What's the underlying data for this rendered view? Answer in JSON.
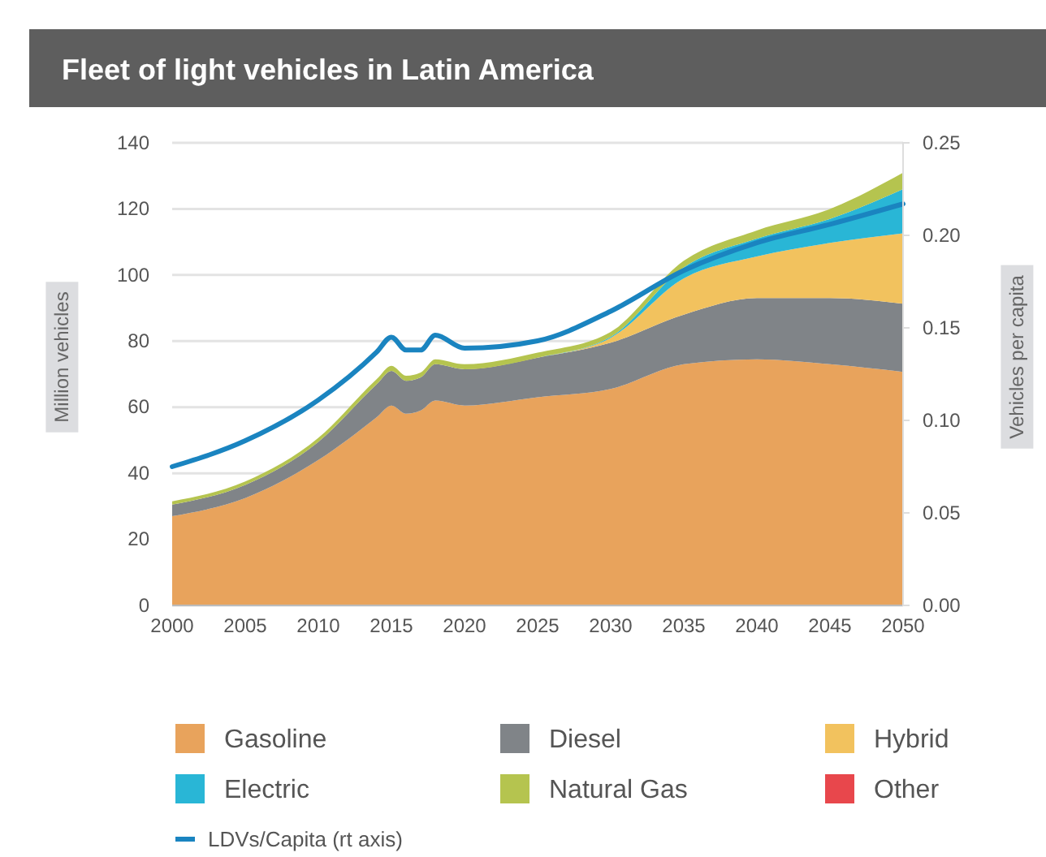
{
  "chart_data": {
    "type": "area",
    "title": "Fleet of light vehicles in Latin America",
    "ylabel": "Million vehicles",
    "y2label": "Vehicles per capita",
    "stacked": true,
    "grid": "y",
    "legend": "bottom",
    "x": [
      2000,
      2005,
      2010,
      2014,
      2015,
      2016,
      2017,
      2018,
      2020,
      2025,
      2030,
      2035,
      2040,
      2045,
      2050
    ],
    "xlim": [
      2000,
      2050
    ],
    "xticks": [
      2000,
      2005,
      2010,
      2015,
      2020,
      2025,
      2030,
      2035,
      2040,
      2045,
      2050
    ],
    "ylim": [
      0,
      140
    ],
    "yticks": [
      0,
      20,
      40,
      60,
      80,
      100,
      120,
      140
    ],
    "y2lim": [
      0,
      0.25
    ],
    "y2ticks": [
      {
        "value": 0,
        "label": "0.00"
      },
      {
        "value": 0.05,
        "label": "0.05"
      },
      {
        "value": 0.1,
        "label": "0.10"
      },
      {
        "value": 0.15,
        "label": "0.15"
      },
      {
        "value": 0.2,
        "label": "0.20"
      },
      {
        "value": 0.25,
        "label": "0.25"
      }
    ],
    "series": [
      {
        "name": "Gasoline",
        "color": "#e8a35c",
        "values": [
          27,
          32.5,
          44,
          57,
          60.5,
          58,
          59,
          62,
          60.5,
          63,
          65.5,
          73,
          74.5,
          73,
          70.7
        ]
      },
      {
        "name": "Diesel",
        "color": "#808488",
        "values": [
          3.5,
          4,
          5.5,
          10,
          10.5,
          10,
          10,
          11,
          11,
          12,
          14,
          15,
          18.5,
          20,
          20.6
        ]
      },
      {
        "name": "Hybrid",
        "color": "#f2c25e",
        "values": [
          0,
          0,
          0,
          0,
          0,
          0,
          0,
          0,
          0,
          0,
          1.5,
          11,
          12.6,
          16.7,
          21.3
        ]
      },
      {
        "name": "Electric",
        "color": "#29b6d6",
        "values": [
          0,
          0,
          0,
          0,
          0,
          0,
          0,
          0,
          0,
          0,
          0.3,
          3.3,
          5.4,
          7.3,
          13.4
        ]
      },
      {
        "name": "Natural Gas",
        "color": "#b5c44f",
        "values": [
          1,
          1,
          1.2,
          1.5,
          1.5,
          1.5,
          1.5,
          1.5,
          1.5,
          1.5,
          1.5,
          2,
          2.5,
          3,
          5
        ]
      },
      {
        "name": "Other",
        "color": "#e8474c",
        "values": [
          null,
          null,
          null,
          null,
          null,
          null,
          null,
          null,
          null,
          null,
          null,
          null,
          null,
          null,
          null
        ]
      },
      {
        "name": "LDVs/Capita (rt axis)",
        "type": "line",
        "axis": "y2",
        "color": "#1a84c0",
        "values": [
          0.075,
          0.089,
          0.111,
          0.137,
          0.145,
          0.138,
          0.138,
          0.146,
          0.139,
          0.143,
          0.159,
          0.181,
          0.196,
          0.206,
          0.217
        ]
      }
    ]
  }
}
